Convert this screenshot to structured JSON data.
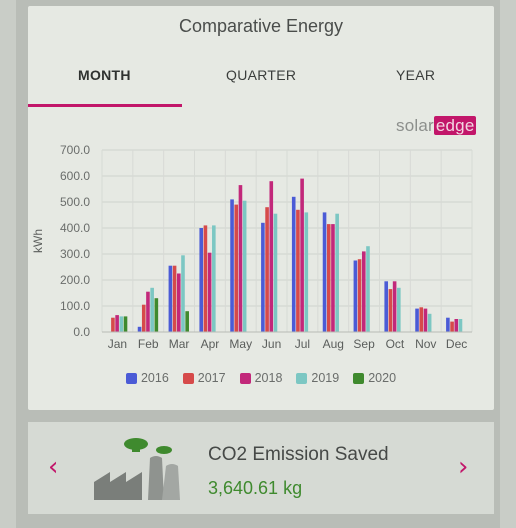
{
  "card": {
    "title": "Comparative Energy",
    "tabs": [
      {
        "label": "MONTH",
        "active": true
      },
      {
        "label": "QUARTER",
        "active": false
      },
      {
        "label": "YEAR",
        "active": false
      }
    ],
    "brand": {
      "text_main": "solar",
      "text_accent": "edge"
    }
  },
  "chart_data": {
    "type": "bar",
    "ylabel": "kWh",
    "ylim": [
      0,
      700
    ],
    "yticks": [
      "0.0",
      "100.0",
      "200.0",
      "300.0",
      "400.0",
      "500.0",
      "600.0",
      "700.0"
    ],
    "categories": [
      "Jan",
      "Feb",
      "Mar",
      "Apr",
      "May",
      "Jun",
      "Jul",
      "Aug",
      "Sep",
      "Oct",
      "Nov",
      "Dec"
    ],
    "legend_position": "bottom",
    "grid": true,
    "series": [
      {
        "name": "2016",
        "color": "#4b5bd6",
        "values": [
          0,
          20,
          255,
          400,
          510,
          420,
          520,
          460,
          275,
          195,
          90,
          55
        ]
      },
      {
        "name": "2017",
        "color": "#d64a4a",
        "values": [
          55,
          105,
          255,
          410,
          490,
          480,
          470,
          415,
          280,
          165,
          95,
          40
        ]
      },
      {
        "name": "2018",
        "color": "#c2287a",
        "values": [
          65,
          155,
          225,
          305,
          565,
          580,
          590,
          415,
          310,
          195,
          90,
          50
        ]
      },
      {
        "name": "2019",
        "color": "#7cc7c3",
        "values": [
          60,
          170,
          295,
          410,
          505,
          455,
          460,
          455,
          330,
          170,
          70,
          50
        ]
      },
      {
        "name": "2020",
        "color": "#3f8a2e",
        "values": [
          60,
          130,
          80,
          0,
          0,
          0,
          0,
          0,
          0,
          0,
          0,
          0
        ]
      }
    ]
  },
  "co2": {
    "title": "CO2 Emission Saved",
    "value": "3,640.61 kg",
    "icon": "factory-icon",
    "prev_icon": "chevron-left-icon",
    "next_icon": "chevron-right-icon",
    "accent_color": "#c2166a",
    "value_color": "#3f8a2e"
  }
}
